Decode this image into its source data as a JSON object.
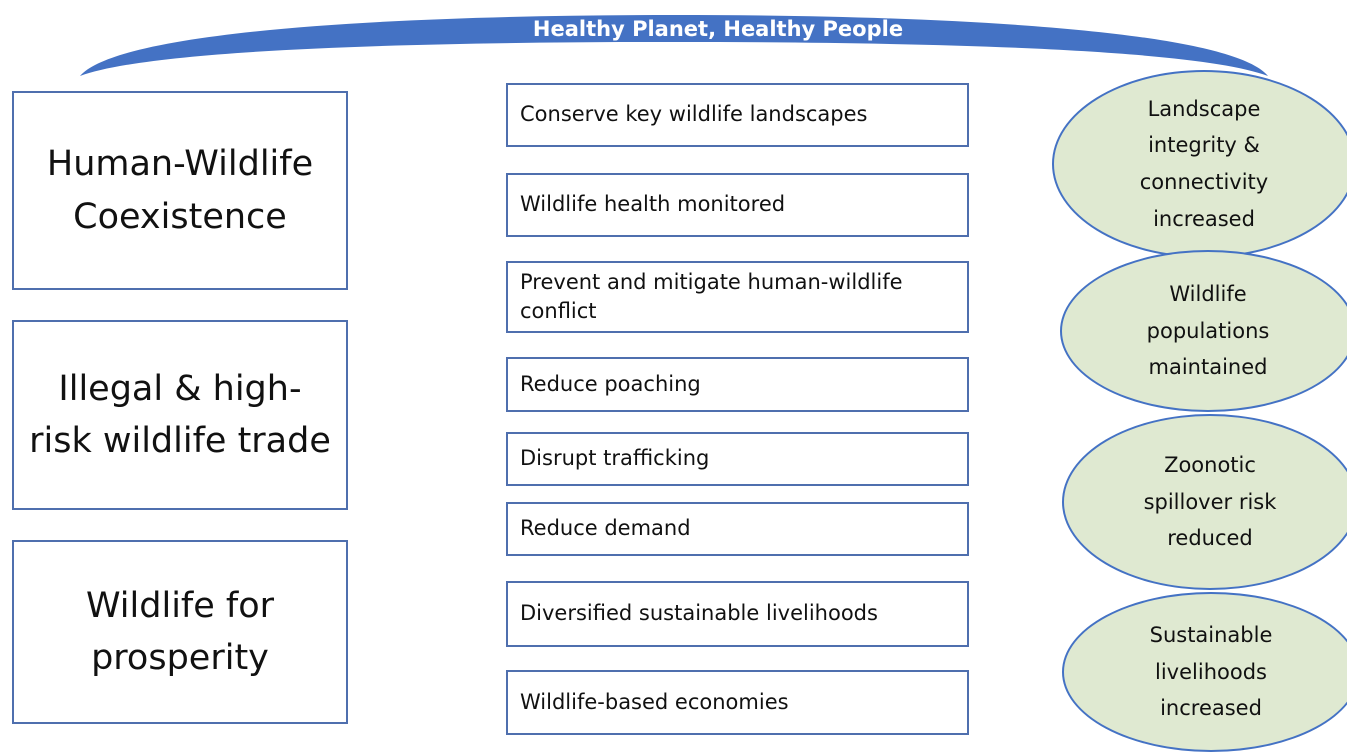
{
  "banner": {
    "title": "Healthy Planet, Healthy People"
  },
  "pillars": [
    "Human-Wildlife Coexistence",
    "Illegal & high-risk wildlife trade",
    "Wildlife for prosperity"
  ],
  "strategies": [
    "Conserve key wildlife landscapes",
    "Wildlife health monitored",
    "Prevent and mitigate human-wildlife conflict",
    "Reduce poaching",
    "Disrupt trafficking",
    "Reduce demand",
    "Diversified sustainable livelihoods",
    "Wildlife-based economies"
  ],
  "outcomes": [
    "Landscape integrity & connectivity increased",
    "Wildlife populations maintained",
    "Zoonotic spillover risk reduced",
    "Sustainable livelihoods increased"
  ]
}
